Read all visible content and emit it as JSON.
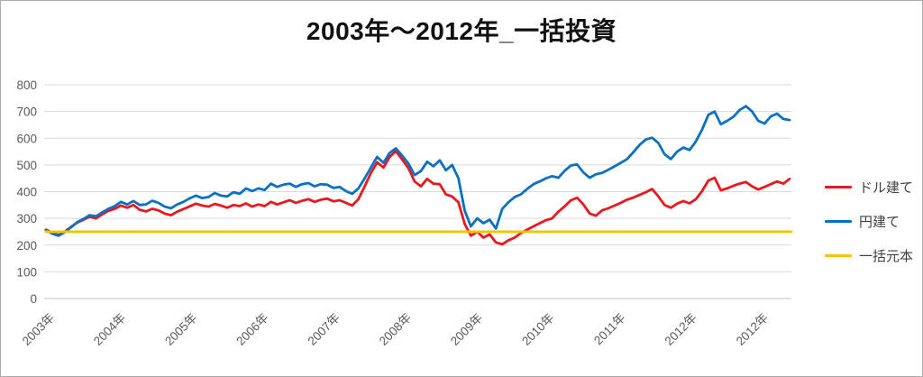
{
  "chart_data": {
    "type": "line",
    "title": "2003年～2012年_一括投資",
    "xlabel": "",
    "ylabel": "",
    "y_axis": {
      "min": 0,
      "max": 800,
      "step": 100,
      "tick_labels": [
        "0",
        "100",
        "200",
        "300",
        "400",
        "500",
        "600",
        "700",
        "800"
      ]
    },
    "x_tick_labels": [
      "2003年",
      "2004年",
      "2005年",
      "2006年",
      "2007年",
      "2008年",
      "2009年",
      "2010年",
      "2011年",
      "2012年",
      "2012年"
    ],
    "grid": true,
    "grid_color": "#d9d9d9",
    "axis_text_color": "#595959",
    "legend_position": "right",
    "series": [
      {
        "name": "ドル建て",
        "color": "#e8191e",
        "values": [
          258,
          246,
          238,
          250,
          268,
          284,
          295,
          306,
          300,
          315,
          328,
          336,
          348,
          340,
          350,
          332,
          326,
          336,
          330,
          318,
          312,
          325,
          335,
          345,
          355,
          348,
          344,
          354,
          348,
          340,
          350,
          346,
          356,
          344,
          352,
          346,
          362,
          352,
          360,
          368,
          358,
          366,
          372,
          362,
          370,
          374,
          364,
          368,
          358,
          348,
          372,
          420,
          470,
          510,
          490,
          530,
          552,
          520,
          488,
          438,
          420,
          448,
          430,
          428,
          390,
          382,
          360,
          280,
          235,
          250,
          228,
          240,
          210,
          203,
          218,
          228,
          245,
          258,
          270,
          282,
          293,
          300,
          325,
          345,
          368,
          377,
          352,
          318,
          310,
          330,
          338,
          348,
          358,
          370,
          378,
          388,
          398,
          410,
          382,
          350,
          340,
          355,
          365,
          356,
          372,
          402,
          442,
          452,
          405,
          412,
          422,
          430,
          436,
          420,
          408,
          418,
          428,
          438,
          430,
          448
        ]
      },
      {
        "name": "円建て",
        "color": "#0b70c0",
        "values": [
          256,
          243,
          235,
          248,
          266,
          286,
          298,
          312,
          308,
          322,
          336,
          346,
          362,
          352,
          365,
          350,
          352,
          366,
          358,
          344,
          338,
          352,
          362,
          375,
          385,
          376,
          380,
          395,
          385,
          382,
          398,
          392,
          412,
          402,
          412,
          406,
          430,
          418,
          426,
          430,
          418,
          428,
          432,
          420,
          428,
          426,
          414,
          418,
          402,
          392,
          412,
          450,
          490,
          530,
          508,
          545,
          562,
          535,
          505,
          462,
          477,
          512,
          495,
          517,
          480,
          500,
          450,
          330,
          270,
          300,
          282,
          295,
          262,
          335,
          360,
          380,
          390,
          410,
          428,
          438,
          450,
          458,
          452,
          478,
          498,
          502,
          472,
          452,
          465,
          470,
          482,
          495,
          508,
          522,
          548,
          575,
          595,
          602,
          582,
          540,
          522,
          550,
          565,
          556,
          588,
          632,
          688,
          700,
          652,
          665,
          680,
          705,
          720,
          700,
          665,
          655,
          682,
          692,
          672,
          668
        ]
      },
      {
        "name": "一括元本",
        "color": "#ffc000",
        "constant": 250
      }
    ]
  }
}
